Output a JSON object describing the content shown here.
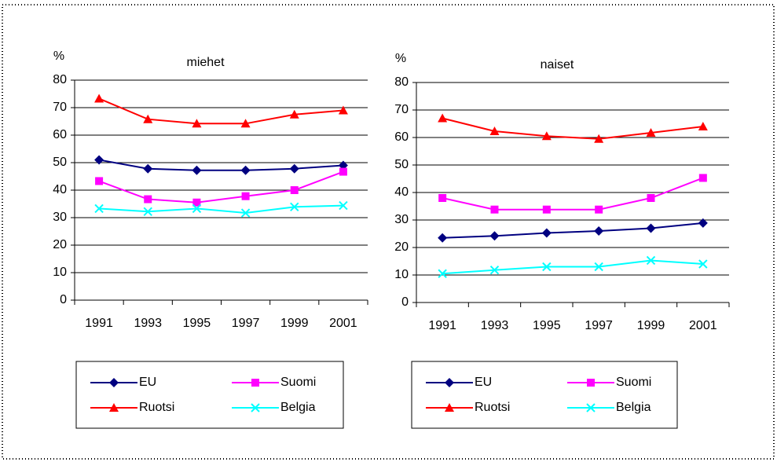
{
  "chart_data": [
    {
      "type": "line",
      "title": "miehet",
      "y_label": "%",
      "categories": [
        "1991",
        "1993",
        "1995",
        "1997",
        "1999",
        "2001"
      ],
      "ylim": [
        0,
        80
      ],
      "yticks": [
        0,
        10,
        20,
        30,
        40,
        50,
        60,
        70,
        80
      ],
      "grid": true,
      "series": [
        {
          "name": "EU",
          "color": "#000080",
          "marker": "diamond",
          "values": [
            51,
            47.8,
            47.2,
            47.2,
            47.8,
            49
          ]
        },
        {
          "name": "Suomi",
          "color": "#ff00ff",
          "marker": "square",
          "values": [
            43.3,
            36.7,
            35.5,
            37.8,
            40,
            46.7
          ]
        },
        {
          "name": "Ruotsi",
          "color": "#ff0000",
          "marker": "triangle",
          "values": [
            73.3,
            65.8,
            64.2,
            64.2,
            67.5,
            69
          ]
        },
        {
          "name": "Belgia",
          "color": "#00ffff",
          "marker": "x",
          "values": [
            33.3,
            32.2,
            33.3,
            31.7,
            33.9,
            34.4
          ]
        }
      ]
    },
    {
      "type": "line",
      "title": "naiset",
      "y_label": "%",
      "categories": [
        "1991",
        "1993",
        "1995",
        "1997",
        "1999",
        "2001"
      ],
      "ylim": [
        0,
        80
      ],
      "yticks": [
        0,
        10,
        20,
        30,
        40,
        50,
        60,
        70,
        80
      ],
      "grid": true,
      "series": [
        {
          "name": "EU",
          "color": "#000080",
          "marker": "diamond",
          "values": [
            23.5,
            24.2,
            25.3,
            26,
            27,
            28.9
          ]
        },
        {
          "name": "Suomi",
          "color": "#ff00ff",
          "marker": "square",
          "values": [
            38,
            33.8,
            33.8,
            33.8,
            38,
            45.3
          ]
        },
        {
          "name": "Ruotsi",
          "color": "#ff0000",
          "marker": "triangle",
          "values": [
            67,
            62.3,
            60.5,
            59.5,
            61.7,
            64
          ]
        },
        {
          "name": "Belgia",
          "color": "#00ffff",
          "marker": "x",
          "values": [
            10.5,
            11.8,
            13,
            13,
            15.3,
            14
          ]
        }
      ]
    }
  ]
}
